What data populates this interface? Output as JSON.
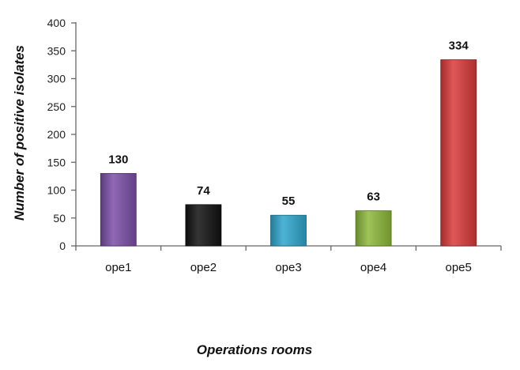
{
  "chart_data": {
    "type": "bar",
    "title": "",
    "xlabel": "Operations rooms",
    "ylabel": "Number of positive isolates",
    "categories": [
      "ope1",
      "ope2",
      "ope3",
      "ope4",
      "ope5"
    ],
    "values": [
      130,
      74,
      55,
      63,
      334
    ],
    "value_labels": [
      "130",
      "74",
      "55",
      "63",
      "334"
    ],
    "ylim": [
      0,
      400
    ],
    "yticks": [
      0,
      50,
      100,
      150,
      200,
      250,
      300,
      350,
      400
    ],
    "ytick_labels": [
      "0",
      "50",
      "100",
      "150",
      "200",
      "250",
      "300",
      "350",
      "400"
    ],
    "grid": false,
    "legend": "none",
    "bar_colors": [
      "#7b4fa8",
      "#111111",
      "#2ea6cc",
      "#8db83a",
      "#d93a3a"
    ]
  }
}
